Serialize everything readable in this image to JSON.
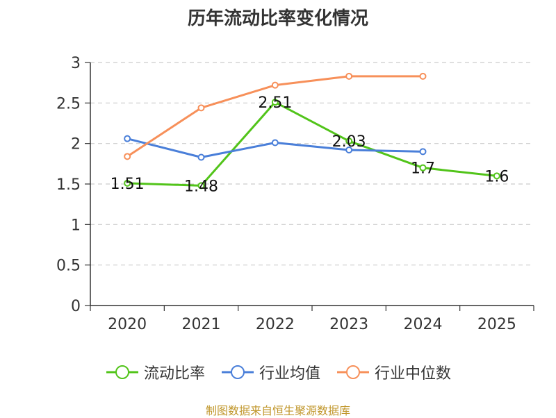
{
  "chart_data": {
    "type": "line",
    "title": "历年流动比率变化情况",
    "categories": [
      "2020",
      "2021",
      "2022",
      "2023",
      "2024",
      "2025"
    ],
    "ylim": [
      0,
      3
    ],
    "yticks": [
      "0",
      "0.5",
      "1",
      "1.5",
      "2",
      "2.5",
      "3"
    ],
    "grid": true,
    "series": [
      {
        "name": "流动比率",
        "color": "#52c41a",
        "values": [
          1.51,
          1.48,
          2.51,
          2.03,
          1.7,
          1.6
        ],
        "labels": [
          "1.51",
          "1.48",
          "2.51",
          "2.03",
          "1.7",
          "1.6"
        ]
      },
      {
        "name": "行业均值",
        "color": "#4a7fd9",
        "values": [
          2.06,
          1.83,
          2.01,
          1.92,
          1.9,
          null
        ]
      },
      {
        "name": "行业中位数",
        "color": "#f7905a",
        "values": [
          1.84,
          2.44,
          2.72,
          2.83,
          2.83,
          null
        ]
      }
    ],
    "legend_position": "bottom",
    "source": "制图数据来自恒生聚源数据库"
  }
}
